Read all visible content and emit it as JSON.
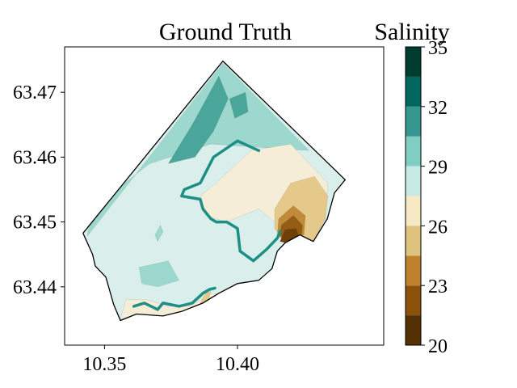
{
  "chart_data": [
    {
      "type": "heatmap",
      "subtype": "filled contour map",
      "title": "Ground Truth",
      "xlabel": "",
      "ylabel": "",
      "xlim": [
        10.335,
        10.455
      ],
      "ylim": [
        63.431,
        63.477
      ],
      "x_ticks": [
        "10.35",
        "10.40"
      ],
      "x_tick_values": [
        10.35,
        10.4
      ],
      "y_ticks": [
        "63.44",
        "63.45",
        "63.46",
        "63.47"
      ],
      "y_tick_values": [
        63.44,
        63.45,
        63.46,
        63.47
      ],
      "grid": false,
      "domain_boundary": [
        [
          10.342,
          63.4483
        ],
        [
          10.3945,
          63.4748
        ],
        [
          10.4405,
          63.4565
        ],
        [
          10.4365,
          63.4545
        ],
        [
          10.4338,
          63.4505
        ],
        [
          10.4285,
          63.447
        ],
        [
          10.4235,
          63.448
        ],
        [
          10.418,
          63.4468
        ],
        [
          10.415,
          63.4455
        ],
        [
          10.413,
          63.4428
        ],
        [
          10.408,
          63.441
        ],
        [
          10.4,
          63.4405
        ],
        [
          10.393,
          63.439
        ],
        [
          10.387,
          63.4375
        ],
        [
          10.379,
          63.4362
        ],
        [
          10.372,
          63.4355
        ],
        [
          10.362,
          63.4358
        ],
        [
          10.356,
          63.4348
        ],
        [
          10.3535,
          63.4372
        ],
        [
          10.3505,
          63.4415
        ],
        [
          10.3465,
          63.4432
        ],
        [
          10.3455,
          63.445
        ],
        [
          10.342,
          63.4482
        ]
      ],
      "regions": [
        {
          "level": "29-30.5",
          "polygon": [
            [
              10.3435,
              63.4478
            ],
            [
              10.3945,
              63.4745
            ],
            [
              10.427,
              63.461
            ],
            [
              10.39,
              63.462
            ],
            [
              10.367,
              63.459
            ],
            [
              10.345,
              63.452
            ],
            [
              10.3435,
              63.4478
            ]
          ]
        },
        {
          "level": "30.5-32",
          "polygon": [
            [
              10.374,
              63.459
            ],
            [
              10.383,
              63.465
            ],
            [
              10.393,
              63.4725
            ],
            [
              10.3965,
              63.469
            ],
            [
              10.391,
              63.464
            ],
            [
              10.384,
              63.46
            ],
            [
              10.374,
              63.459
            ]
          ]
        },
        {
          "level": "30.5-32",
          "polygon": [
            [
              10.397,
              63.469
            ],
            [
              10.403,
              63.47
            ],
            [
              10.404,
              63.467
            ],
            [
              10.399,
              63.466
            ],
            [
              10.397,
              63.469
            ]
          ]
        },
        {
          "level": "29-30.5",
          "polygon": [
            [
              10.363,
              63.443
            ],
            [
              10.374,
              63.444
            ],
            [
              10.378,
              63.441
            ],
            [
              10.37,
              63.44
            ],
            [
              10.364,
              63.4405
            ],
            [
              10.363,
              63.443
            ]
          ]
        },
        {
          "level": "29-30.5",
          "polygon": [
            [
              10.369,
              63.448
            ],
            [
              10.371,
              63.4495
            ],
            [
              10.372,
              63.4485
            ],
            [
              10.37,
              63.447
            ],
            [
              10.369,
              63.448
            ]
          ]
        },
        {
          "level": "26-27.5",
          "polygon": [
            [
              10.386,
              63.454
            ],
            [
              10.392,
              63.456
            ],
            [
              10.405,
              63.461
            ],
            [
              10.42,
              63.462
            ],
            [
              10.434,
              63.456
            ],
            [
              10.433,
              63.4505
            ],
            [
              10.4285,
              63.447
            ],
            [
              10.418,
              63.4468
            ],
            [
              10.414,
              63.45
            ],
            [
              10.408,
              63.452
            ],
            [
              10.396,
              63.45
            ],
            [
              10.388,
              63.451
            ],
            [
              10.386,
              63.454
            ]
          ]
        },
        {
          "level": "26-27.5",
          "polygon": [
            [
              10.356,
              63.435
            ],
            [
              10.358,
              63.438
            ],
            [
              10.366,
              63.438
            ],
            [
              10.374,
              63.437
            ],
            [
              10.382,
              63.437
            ],
            [
              10.39,
              63.439
            ],
            [
              10.393,
              63.4388
            ],
            [
              10.387,
              63.4375
            ],
            [
              10.379,
              63.4362
            ],
            [
              10.372,
              63.4355
            ],
            [
              10.362,
              63.4358
            ],
            [
              10.356,
              63.435
            ]
          ]
        },
        {
          "level": "24.5-26",
          "polygon": [
            [
              10.414,
              63.452
            ],
            [
              10.42,
              63.456
            ],
            [
              10.429,
              63.457
            ],
            [
              10.434,
              63.454
            ],
            [
              10.433,
              63.4505
            ],
            [
              10.4285,
              63.447
            ],
            [
              10.418,
              63.4468
            ],
            [
              10.414,
              63.449
            ],
            [
              10.414,
              63.452
            ]
          ]
        },
        {
          "level": "24.5-26",
          "polygon": [
            [
              10.386,
              63.4375
            ],
            [
              10.388,
              63.439
            ],
            [
              10.39,
              63.4393
            ],
            [
              10.389,
              63.4378
            ],
            [
              10.386,
              63.4375
            ]
          ]
        },
        {
          "level": "23-24.5",
          "polygon": [
            [
              10.4155,
              63.4505
            ],
            [
              10.421,
              63.4525
            ],
            [
              10.4255,
              63.451
            ],
            [
              10.425,
              63.448
            ],
            [
              10.418,
              63.447
            ],
            [
              10.415,
              63.448
            ],
            [
              10.4155,
              63.4505
            ]
          ]
        },
        {
          "level": "21.5-23",
          "polygon": [
            [
              10.4165,
              63.4495
            ],
            [
              10.421,
              63.451
            ],
            [
              10.4245,
              63.4495
            ],
            [
              10.424,
              63.4478
            ],
            [
              10.4185,
              63.447
            ],
            [
              10.416,
              63.448
            ],
            [
              10.4165,
              63.4495
            ]
          ]
        },
        {
          "level": "20-21.5",
          "polygon": [
            [
              10.416,
              63.447
            ],
            [
              10.418,
              63.4488
            ],
            [
              10.422,
              63.449
            ],
            [
              10.423,
              63.4478
            ],
            [
              10.418,
              63.4468
            ],
            [
              10.416,
              63.447
            ]
          ]
        }
      ],
      "contour_lines_28": [
        [
          [
            10.408,
            63.461
          ],
          [
            10.4,
            63.4625
          ],
          [
            10.391,
            63.46
          ],
          [
            10.386,
            63.456
          ],
          [
            10.38,
            63.455
          ],
          [
            10.379,
            63.454
          ],
          [
            10.386,
            63.4535
          ],
          [
            10.387,
            63.452
          ],
          [
            10.39,
            63.4505
          ],
          [
            10.392,
            63.45
          ],
          [
            10.396,
            63.45
          ],
          [
            10.4,
            63.449
          ],
          [
            10.401,
            63.4455
          ],
          [
            10.406,
            63.444
          ],
          [
            10.411,
            63.4458
          ],
          [
            10.415,
            63.4475
          ],
          [
            10.416,
            63.4485
          ]
        ],
        [
          [
            10.361,
            63.437
          ],
          [
            10.365,
            63.4375
          ],
          [
            10.37,
            63.4365
          ],
          [
            10.372,
            63.4375
          ],
          [
            10.378,
            63.437
          ],
          [
            10.383,
            63.4375
          ],
          [
            10.387,
            63.439
          ],
          [
            10.3895,
            63.4396
          ],
          [
            10.3915,
            63.4398
          ]
        ]
      ],
      "unit_label": "Salinity",
      "colorbar": {
        "title": "Salinity",
        "range": [
          20,
          35
        ],
        "ticks": [
          "20",
          "23",
          "26",
          "29",
          "32",
          "35"
        ],
        "tick_values": [
          20,
          23,
          26,
          29,
          32,
          35
        ],
        "levels": [
          20,
          21.5,
          23,
          24.5,
          26,
          27.5,
          29,
          30.5,
          32,
          33.5,
          35
        ],
        "colors": [
          "#543005",
          "#8c510a",
          "#bf812d",
          "#dfc27d",
          "#f6e8c3",
          "#c7eae5",
          "#80cdc1",
          "#35978f",
          "#01665e",
          "#003c30"
        ]
      }
    }
  ],
  "colors": {
    "level_29_30_5": "#9dd8cf",
    "level_27_5_29": "#daefec",
    "level_26_27_5": "#f5edd8",
    "level_24_5_26": "#e5c98b",
    "level_23_24_5": "#c08a3b",
    "level_21_5_23": "#945c14",
    "level_20_21_5": "#6e4008",
    "level_30_5_32": "#4aa69a",
    "contour_line": "#1f8f86",
    "boundary": "#000000"
  }
}
